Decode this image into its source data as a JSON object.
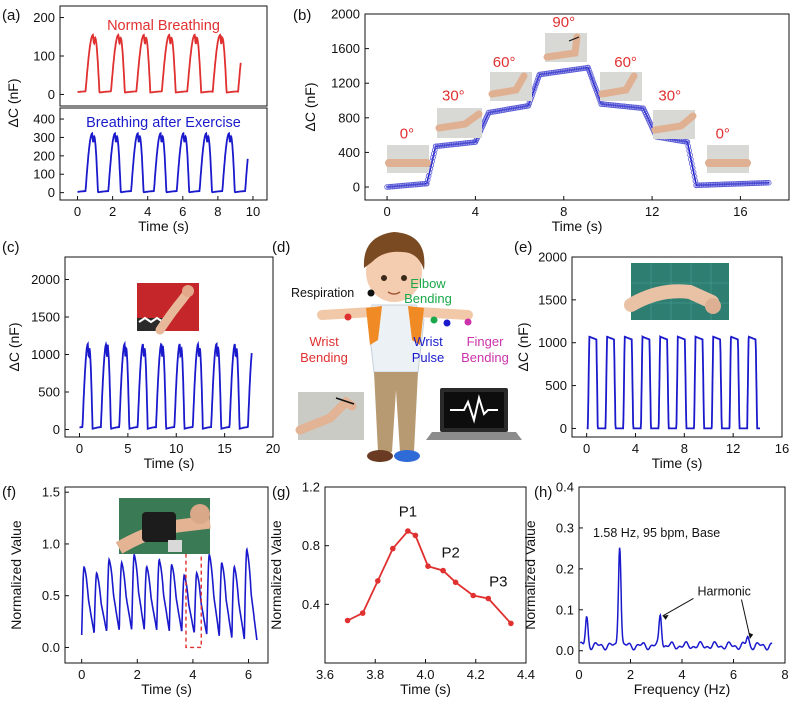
{
  "panel_labels": {
    "a": "(a)",
    "b": "(b)",
    "c": "(c)",
    "d": "(d)",
    "e": "(e)",
    "f": "(f)",
    "g": "(g)",
    "h": "(h)"
  },
  "colors": {
    "red": "#e03030",
    "blue": "#1a1acc",
    "green": "#1aa84a",
    "magenta": "#cc33aa",
    "black": "#111111",
    "marker_blue": "#5b5bd6"
  },
  "chart_data": [
    {
      "id": "a_top",
      "type": "line",
      "title": "Normal Breathing",
      "ylabel": "ΔC (nF)",
      "xlim": [
        -1,
        10.8
      ],
      "ylim": [
        -30,
        230
      ],
      "yticks": [
        0,
        100,
        200
      ],
      "xticks": [],
      "period": 1.45,
      "phase": 0.45,
      "amplitude": 150,
      "offset": 5,
      "x_start": 0,
      "x_end": 9.3,
      "color": "red"
    },
    {
      "id": "a_bottom",
      "type": "line",
      "title": "Breathing after Exercise",
      "xlabel": "Time (s)",
      "xlim": [
        -1,
        10.8
      ],
      "ylim": [
        -40,
        460
      ],
      "yticks": [
        0,
        100,
        200,
        300,
        400
      ],
      "xticks": [
        0,
        2,
        4,
        6,
        8,
        10
      ],
      "period": 1.3,
      "phase": 0.45,
      "amplitude": 320,
      "offset": 2,
      "x_start": 0,
      "x_end": 9.7,
      "color": "blue"
    },
    {
      "id": "b",
      "type": "scatter",
      "xlabel": "Time (s)",
      "ylabel": "ΔC (nF)",
      "xlim": [
        -1,
        18.2
      ],
      "ylim": [
        -150,
        2000
      ],
      "yticks": [
        0,
        400,
        800,
        1200,
        1600,
        2000
      ],
      "xticks": [
        0,
        4,
        8,
        12,
        16
      ],
      "steps": [
        {
          "t0": 0.0,
          "t1": 1.8,
          "v0": 0,
          "v1": 40
        },
        {
          "t0": 2.2,
          "t1": 4.0,
          "v0": 470,
          "v1": 520
        },
        {
          "t0": 4.6,
          "t1": 6.4,
          "v0": 860,
          "v1": 940
        },
        {
          "t0": 6.9,
          "t1": 9.1,
          "v0": 1300,
          "v1": 1380
        },
        {
          "t0": 9.7,
          "t1": 11.6,
          "v0": 960,
          "v1": 910
        },
        {
          "t0": 12.2,
          "t1": 13.6,
          "v0": 580,
          "v1": 520
        },
        {
          "t0": 14.0,
          "t1": 17.3,
          "v0": 20,
          "v1": 50
        }
      ],
      "annotations": [
        {
          "label": "0°",
          "t": 0.9,
          "v": 560
        },
        {
          "label": "30°",
          "t": 3.0,
          "v": 1000
        },
        {
          "label": "60°",
          "t": 5.3,
          "v": 1390
        },
        {
          "label": "90°",
          "t": 8.0,
          "v": 1850
        },
        {
          "label": "60°",
          "t": 10.8,
          "v": 1390
        },
        {
          "label": "30°",
          "t": 12.8,
          "v": 1000
        },
        {
          "label": "0°",
          "t": 15.2,
          "v": 560
        }
      ]
    },
    {
      "id": "c",
      "type": "line",
      "xlabel": "Time (s)",
      "ylabel": "ΔC (nF)",
      "xlim": [
        -1.5,
        20
      ],
      "ylim": [
        -100,
        2300
      ],
      "yticks": [
        0,
        500,
        1000,
        1500,
        2000
      ],
      "xticks": [
        0,
        5,
        10,
        15,
        20
      ],
      "period": 1.9,
      "phase": 0.3,
      "amplitude": 1130,
      "offset": 10,
      "x_start": 0,
      "x_end": 17.8,
      "color": "blue"
    },
    {
      "id": "e",
      "type": "line",
      "xlabel": "Time (s)",
      "ylabel": "ΔC (nF)",
      "xlim": [
        -1.2,
        16
      ],
      "ylim": [
        -100,
        2000
      ],
      "yticks": [
        0,
        500,
        1000,
        1500,
        2000
      ],
      "xticks": [
        0,
        4,
        8,
        12,
        16
      ],
      "period": 1.45,
      "phase": 0.1,
      "amplitude": 1070,
      "offset": 0,
      "x_start": 0,
      "x_end": 14.2,
      "color": "blue",
      "square": true
    },
    {
      "id": "f",
      "type": "line",
      "xlabel": "Time (s)",
      "ylabel": "Normalized Value",
      "xlim": [
        -0.6,
        6.7
      ],
      "ylim": [
        -0.15,
        1.55
      ],
      "yticks": [
        0.0,
        0.5,
        1.0,
        1.5
      ],
      "xticks": [
        0,
        2,
        4,
        6
      ],
      "peaks": [
        0.78,
        0.72,
        0.85,
        0.82,
        0.9,
        0.78,
        0.85,
        0.8,
        0.7,
        0.72,
        0.9,
        0.82,
        0.78,
        0.95
      ],
      "period": 0.45,
      "x_start": 0,
      "x_end": 6.3,
      "color": "blue",
      "highlight_box": {
        "x0": 3.75,
        "x1": 4.3,
        "y0": 0.0,
        "y1": 1.0
      }
    },
    {
      "id": "g",
      "type": "line",
      "xlabel": "Time (s)",
      "ylabel": "Normalized Value",
      "xlim": [
        3.6,
        4.4
      ],
      "ylim": [
        0.0,
        1.2
      ],
      "yticks": [
        0.4,
        0.8,
        1.2
      ],
      "xticks": [
        3.6,
        3.8,
        4.0,
        4.2,
        4.4
      ],
      "x": [
        3.69,
        3.75,
        3.81,
        3.87,
        3.93,
        3.96,
        4.01,
        4.07,
        4.12,
        4.19,
        4.25,
        4.34
      ],
      "y": [
        0.29,
        0.34,
        0.56,
        0.78,
        0.9,
        0.87,
        0.66,
        0.63,
        0.55,
        0.46,
        0.44,
        0.27
      ],
      "labels": [
        {
          "text": "P1",
          "x": 3.93,
          "y": 1.0
        },
        {
          "text": "P2",
          "x": 4.1,
          "y": 0.72
        },
        {
          "text": "P3",
          "x": 4.29,
          "y": 0.52
        }
      ],
      "color": "red"
    },
    {
      "id": "h",
      "type": "line",
      "xlabel": "Frequency (Hz)",
      "ylabel": "Normalized Value",
      "xlim": [
        0,
        8
      ],
      "ylim": [
        -0.03,
        0.4
      ],
      "yticks": [
        0.0,
        0.1,
        0.2,
        0.3,
        0.4
      ],
      "xticks": [
        0,
        2,
        4,
        6,
        8
      ],
      "annotation": "1.58 Hz, 95 bpm, Base",
      "harmonic_label": "Harmonic",
      "peaks": [
        {
          "f": 0.3,
          "a": 0.07
        },
        {
          "f": 1.58,
          "a": 0.25
        },
        {
          "f": 3.16,
          "a": 0.078
        },
        {
          "f": 6.55,
          "a": 0.022
        }
      ],
      "x_end": 7.5,
      "color": "blue"
    }
  ],
  "panel_d": {
    "respiration": "Respiration",
    "elbow": [
      "Elbow",
      "Bending"
    ],
    "wrist_bending": [
      "Wrist",
      "Bending"
    ],
    "wrist_pulse": [
      "Wrist",
      "Pulse"
    ],
    "finger": [
      "Finger",
      "Bending"
    ]
  }
}
